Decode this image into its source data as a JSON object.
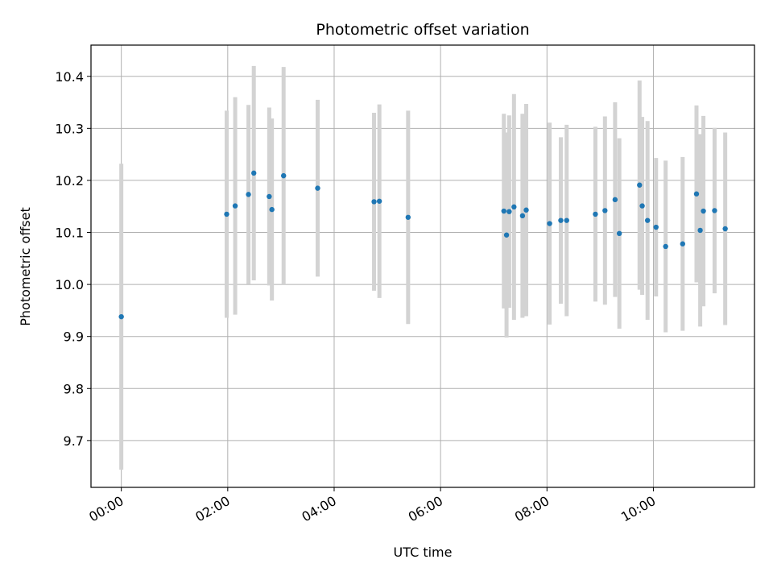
{
  "chart_data": {
    "type": "scatter",
    "title": "Photometric offset variation",
    "xlabel": "UTC time",
    "ylabel": "Photometric offset",
    "xlim": [
      -0.57,
      11.9
    ],
    "ylim": [
      9.61,
      10.46
    ],
    "grid": true,
    "x_ticks": [
      {
        "value": 0,
        "label": "00:00"
      },
      {
        "value": 2,
        "label": "02:00"
      },
      {
        "value": 4,
        "label": "04:00"
      },
      {
        "value": 6,
        "label": "06:00"
      },
      {
        "value": 8,
        "label": "08:00"
      },
      {
        "value": 10,
        "label": "10:00"
      }
    ],
    "y_ticks": [
      {
        "value": 9.7,
        "label": "9.7"
      },
      {
        "value": 9.8,
        "label": "9.8"
      },
      {
        "value": 9.9,
        "label": "9.9"
      },
      {
        "value": 10.0,
        "label": "10.0"
      },
      {
        "value": 10.1,
        "label": "10.1"
      },
      {
        "value": 10.2,
        "label": "10.2"
      },
      {
        "value": 10.3,
        "label": "10.3"
      },
      {
        "value": 10.4,
        "label": "10.4"
      }
    ],
    "series": [
      {
        "name": "Photometric offset",
        "color": "#1f77b4",
        "error_color": "#d3d3d3",
        "points": [
          {
            "x": 0.0,
            "y": 9.938,
            "err": 0.294
          },
          {
            "x": 1.98,
            "y": 10.135,
            "err": 0.199
          },
          {
            "x": 2.14,
            "y": 10.151,
            "err": 0.209
          },
          {
            "x": 2.39,
            "y": 10.173,
            "err": 0.172
          },
          {
            "x": 2.49,
            "y": 10.214,
            "err": 0.206
          },
          {
            "x": 2.78,
            "y": 10.169,
            "err": 0.171
          },
          {
            "x": 2.83,
            "y": 10.144,
            "err": 0.175
          },
          {
            "x": 3.05,
            "y": 10.209,
            "err": 0.209
          },
          {
            "x": 3.69,
            "y": 10.185,
            "err": 0.17
          },
          {
            "x": 4.75,
            "y": 10.159,
            "err": 0.171
          },
          {
            "x": 4.85,
            "y": 10.16,
            "err": 0.186
          },
          {
            "x": 5.39,
            "y": 10.129,
            "err": 0.205
          },
          {
            "x": 7.19,
            "y": 10.141,
            "err": 0.187
          },
          {
            "x": 7.24,
            "y": 10.095,
            "err": 0.197
          },
          {
            "x": 7.29,
            "y": 10.14,
            "err": 0.185
          },
          {
            "x": 7.38,
            "y": 10.149,
            "err": 0.217
          },
          {
            "x": 7.54,
            "y": 10.132,
            "err": 0.196
          },
          {
            "x": 7.61,
            "y": 10.143,
            "err": 0.204
          },
          {
            "x": 8.05,
            "y": 10.117,
            "err": 0.194
          },
          {
            "x": 8.26,
            "y": 10.123,
            "err": 0.16
          },
          {
            "x": 8.37,
            "y": 10.123,
            "err": 0.184
          },
          {
            "x": 8.91,
            "y": 10.135,
            "err": 0.168
          },
          {
            "x": 9.09,
            "y": 10.142,
            "err": 0.181
          },
          {
            "x": 9.28,
            "y": 10.163,
            "err": 0.187
          },
          {
            "x": 9.36,
            "y": 10.098,
            "err": 0.183
          },
          {
            "x": 9.74,
            "y": 10.191,
            "err": 0.201
          },
          {
            "x": 9.79,
            "y": 10.151,
            "err": 0.171
          },
          {
            "x": 9.89,
            "y": 10.123,
            "err": 0.191
          },
          {
            "x": 10.05,
            "y": 10.11,
            "err": 0.133
          },
          {
            "x": 10.23,
            "y": 10.073,
            "err": 0.165
          },
          {
            "x": 10.55,
            "y": 10.078,
            "err": 0.167
          },
          {
            "x": 10.81,
            "y": 10.174,
            "err": 0.17
          },
          {
            "x": 10.88,
            "y": 10.104,
            "err": 0.185
          },
          {
            "x": 10.94,
            "y": 10.141,
            "err": 0.183
          },
          {
            "x": 11.15,
            "y": 10.142,
            "err": 0.159
          },
          {
            "x": 11.35,
            "y": 10.107,
            "err": 0.185
          }
        ]
      }
    ]
  }
}
